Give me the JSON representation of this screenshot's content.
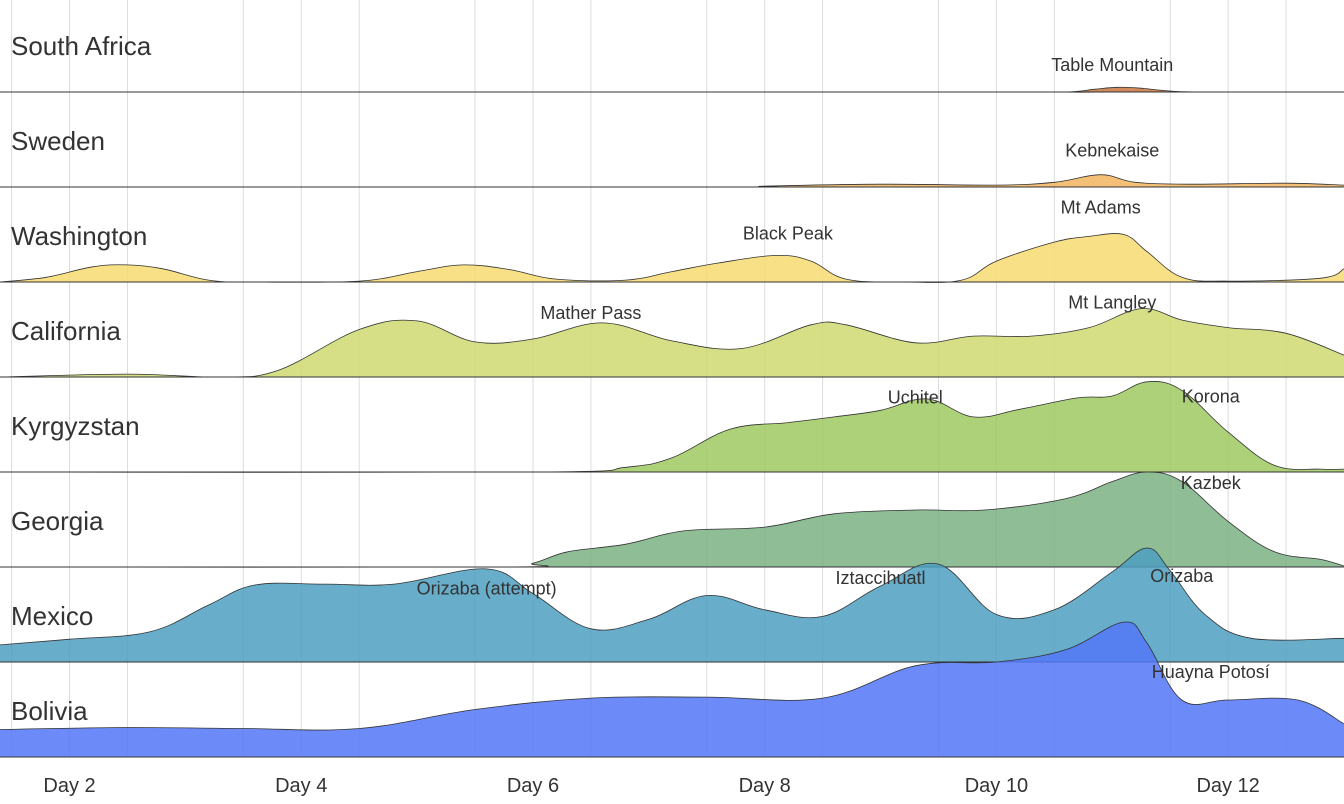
{
  "chart_data": {
    "type": "area",
    "title": "",
    "xlabel": "",
    "ylabel": "",
    "xlim": [
      1.4,
      13.0
    ],
    "x_ticks": [
      {
        "value": 2,
        "label": "Day 2"
      },
      {
        "value": 4,
        "label": "Day 4"
      },
      {
        "value": 6,
        "label": "Day 6"
      },
      {
        "value": 8,
        "label": "Day 8"
      },
      {
        "value": 10,
        "label": "Day 10"
      },
      {
        "value": 12,
        "label": "Day 12"
      }
    ],
    "vertical_grid": [
      1.5,
      2.5,
      3.5,
      4.5,
      5.5,
      6.5,
      7.5,
      8.5,
      9.5,
      10.5,
      11.5,
      12.5
    ],
    "grid": true,
    "legend": "none",
    "series": [
      {
        "name": "South Africa",
        "color": "#c8753f",
        "points": [
          [
            1.4,
            0
          ],
          [
            10.0,
            0
          ],
          [
            10.6,
            0
          ],
          [
            10.85,
            0.03
          ],
          [
            11.05,
            0.05
          ],
          [
            11.25,
            0.04
          ],
          [
            11.5,
            0.01
          ],
          [
            11.8,
            0
          ],
          [
            13.0,
            0
          ]
        ],
        "annotations": [
          {
            "label": "Table Mountain",
            "x": 11.0,
            "y": 0.22
          }
        ]
      },
      {
        "name": "Sweden",
        "color": "#f2b45f",
        "points": [
          [
            1.4,
            0
          ],
          [
            7.5,
            0
          ],
          [
            8.0,
            0.01
          ],
          [
            9.0,
            0.03
          ],
          [
            10.0,
            0.02
          ],
          [
            10.5,
            0.05
          ],
          [
            10.9,
            0.13
          ],
          [
            11.2,
            0.05
          ],
          [
            11.7,
            0.03
          ],
          [
            12.5,
            0.04
          ],
          [
            13.0,
            0.02
          ]
        ],
        "annotations": [
          {
            "label": "Kebnekaise",
            "x": 11.0,
            "y": 0.32
          }
        ]
      },
      {
        "name": "Washington",
        "color": "#f7da72",
        "points": [
          [
            1.4,
            0
          ],
          [
            1.8,
            0.05
          ],
          [
            2.2,
            0.16
          ],
          [
            2.5,
            0.18
          ],
          [
            2.8,
            0.14
          ],
          [
            3.2,
            0.02
          ],
          [
            3.6,
            0
          ],
          [
            4.5,
            0.01
          ],
          [
            5.0,
            0.11
          ],
          [
            5.4,
            0.18
          ],
          [
            5.8,
            0.13
          ],
          [
            6.2,
            0.03
          ],
          [
            6.8,
            0.02
          ],
          [
            7.2,
            0.11
          ],
          [
            7.6,
            0.2
          ],
          [
            8.1,
            0.28
          ],
          [
            8.4,
            0.22
          ],
          [
            8.7,
            0.03
          ],
          [
            9.2,
            0
          ],
          [
            9.7,
            0.02
          ],
          [
            10.0,
            0.22
          ],
          [
            10.5,
            0.42
          ],
          [
            10.8,
            0.48
          ],
          [
            11.1,
            0.5
          ],
          [
            11.3,
            0.32
          ],
          [
            11.6,
            0.05
          ],
          [
            12.0,
            0.01
          ],
          [
            12.8,
            0.04
          ],
          [
            13.0,
            0.14
          ]
        ],
        "annotations": [
          {
            "label": "Black Peak",
            "x": 8.2,
            "y": 0.45
          },
          {
            "label": "Mt Adams",
            "x": 10.9,
            "y": 0.72
          }
        ]
      },
      {
        "name": "California",
        "color": "#cfd971",
        "points": [
          [
            1.4,
            0
          ],
          [
            2.5,
            0.03
          ],
          [
            3.3,
            0
          ],
          [
            3.8,
            0.07
          ],
          [
            4.5,
            0.5
          ],
          [
            5.0,
            0.59
          ],
          [
            5.5,
            0.37
          ],
          [
            6.0,
            0.4
          ],
          [
            6.6,
            0.57
          ],
          [
            7.2,
            0.38
          ],
          [
            7.8,
            0.3
          ],
          [
            8.4,
            0.55
          ],
          [
            8.7,
            0.55
          ],
          [
            9.3,
            0.36
          ],
          [
            9.8,
            0.43
          ],
          [
            10.3,
            0.43
          ],
          [
            10.8,
            0.52
          ],
          [
            11.25,
            0.72
          ],
          [
            11.6,
            0.6
          ],
          [
            12.0,
            0.52
          ],
          [
            12.5,
            0.46
          ],
          [
            13.0,
            0.23
          ]
        ],
        "annotations": [
          {
            "label": "Mather Pass",
            "x": 6.5,
            "y": 0.61
          },
          {
            "label": "Mt Langley",
            "x": 11.0,
            "y": 0.72
          }
        ]
      },
      {
        "name": "Kyrgyzstan",
        "color": "#9fc962",
        "points": [
          [
            1.4,
            0
          ],
          [
            6.0,
            0
          ],
          [
            6.8,
            0.05
          ],
          [
            7.2,
            0.15
          ],
          [
            7.7,
            0.45
          ],
          [
            8.2,
            0.52
          ],
          [
            8.6,
            0.58
          ],
          [
            9.0,
            0.65
          ],
          [
            9.4,
            0.77
          ],
          [
            9.8,
            0.58
          ],
          [
            10.2,
            0.66
          ],
          [
            10.7,
            0.78
          ],
          [
            11.0,
            0.8
          ],
          [
            11.3,
            0.95
          ],
          [
            11.6,
            0.86
          ],
          [
            12.0,
            0.42
          ],
          [
            12.4,
            0.07
          ],
          [
            12.8,
            0.03
          ],
          [
            13.0,
            0.03
          ]
        ],
        "annotations": [
          {
            "label": "Uchitel",
            "x": 9.3,
            "y": 0.72
          },
          {
            "label": "Korona",
            "x": 11.85,
            "y": 0.73
          }
        ]
      },
      {
        "name": "Georgia",
        "color": "#7bb283",
        "points": [
          [
            1.4,
            0
          ],
          [
            5.7,
            0
          ],
          [
            6.0,
            0.04
          ],
          [
            6.3,
            0.16
          ],
          [
            6.8,
            0.24
          ],
          [
            7.3,
            0.38
          ],
          [
            8.0,
            0.42
          ],
          [
            8.6,
            0.56
          ],
          [
            9.3,
            0.6
          ],
          [
            9.9,
            0.6
          ],
          [
            10.6,
            0.72
          ],
          [
            11.0,
            0.9
          ],
          [
            11.3,
            1.0
          ],
          [
            11.6,
            0.9
          ],
          [
            12.0,
            0.48
          ],
          [
            12.4,
            0.16
          ],
          [
            12.8,
            0.08
          ],
          [
            13.0,
            0.01
          ]
        ],
        "annotations": [
          {
            "label": "Kazbek",
            "x": 11.85,
            "y": 0.82
          }
        ]
      },
      {
        "name": "Mexico",
        "color": "#4d9fc1",
        "points": [
          [
            1.4,
            0.18
          ],
          [
            2.0,
            0.24
          ],
          [
            2.7,
            0.32
          ],
          [
            3.2,
            0.6
          ],
          [
            3.6,
            0.81
          ],
          [
            4.2,
            0.82
          ],
          [
            4.8,
            0.82
          ],
          [
            5.6,
            0.98
          ],
          [
            6.0,
            0.72
          ],
          [
            6.5,
            0.35
          ],
          [
            7.0,
            0.45
          ],
          [
            7.5,
            0.7
          ],
          [
            8.0,
            0.55
          ],
          [
            8.5,
            0.48
          ],
          [
            9.0,
            0.8
          ],
          [
            9.5,
            1.03
          ],
          [
            10.0,
            0.5
          ],
          [
            10.5,
            0.55
          ],
          [
            11.0,
            0.95
          ],
          [
            11.3,
            1.2
          ],
          [
            11.5,
            0.96
          ],
          [
            11.8,
            0.5
          ],
          [
            12.2,
            0.25
          ],
          [
            13.0,
            0.25
          ]
        ],
        "annotations": [
          {
            "label": "Orizaba (attempt)",
            "x": 5.6,
            "y": 0.71
          },
          {
            "label": "Iztaccihuatl",
            "x": 9.0,
            "y": 0.82
          },
          {
            "label": "Orizaba",
            "x": 11.6,
            "y": 0.84
          }
        ]
      },
      {
        "name": "Bolivia",
        "color": "#5477f7",
        "points": [
          [
            1.4,
            0.29
          ],
          [
            2.5,
            0.31
          ],
          [
            3.5,
            0.3
          ],
          [
            4.5,
            0.3
          ],
          [
            5.5,
            0.5
          ],
          [
            6.5,
            0.62
          ],
          [
            7.5,
            0.63
          ],
          [
            8.5,
            0.62
          ],
          [
            9.3,
            0.96
          ],
          [
            10.0,
            1.0
          ],
          [
            10.6,
            1.13
          ],
          [
            11.1,
            1.42
          ],
          [
            11.3,
            1.2
          ],
          [
            11.6,
            0.6
          ],
          [
            12.0,
            0.6
          ],
          [
            12.6,
            0.6
          ],
          [
            13.0,
            0.35
          ]
        ],
        "annotations": [
          {
            "label": "Huayna Potosí",
            "x": 11.85,
            "y": 0.83
          }
        ]
      }
    ]
  }
}
